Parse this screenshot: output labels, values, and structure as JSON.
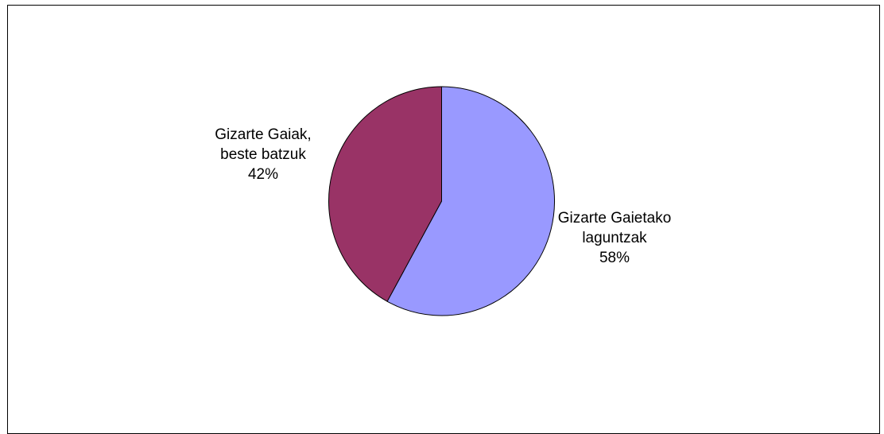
{
  "chart_data": {
    "type": "pie",
    "title": "",
    "slices": [
      {
        "label_lines": [
          "Gizarte Gaietako",
          "laguntzak"
        ],
        "percent_label": "58%",
        "value": 58,
        "color": "#9999ff"
      },
      {
        "label_lines": [
          "Gizarte Gaiak,",
          "beste batzuk"
        ],
        "percent_label": "42%",
        "value": 42,
        "color": "#993366"
      }
    ],
    "start_angle": "12 o'clock",
    "direction": "clockwise",
    "legend": "none"
  }
}
